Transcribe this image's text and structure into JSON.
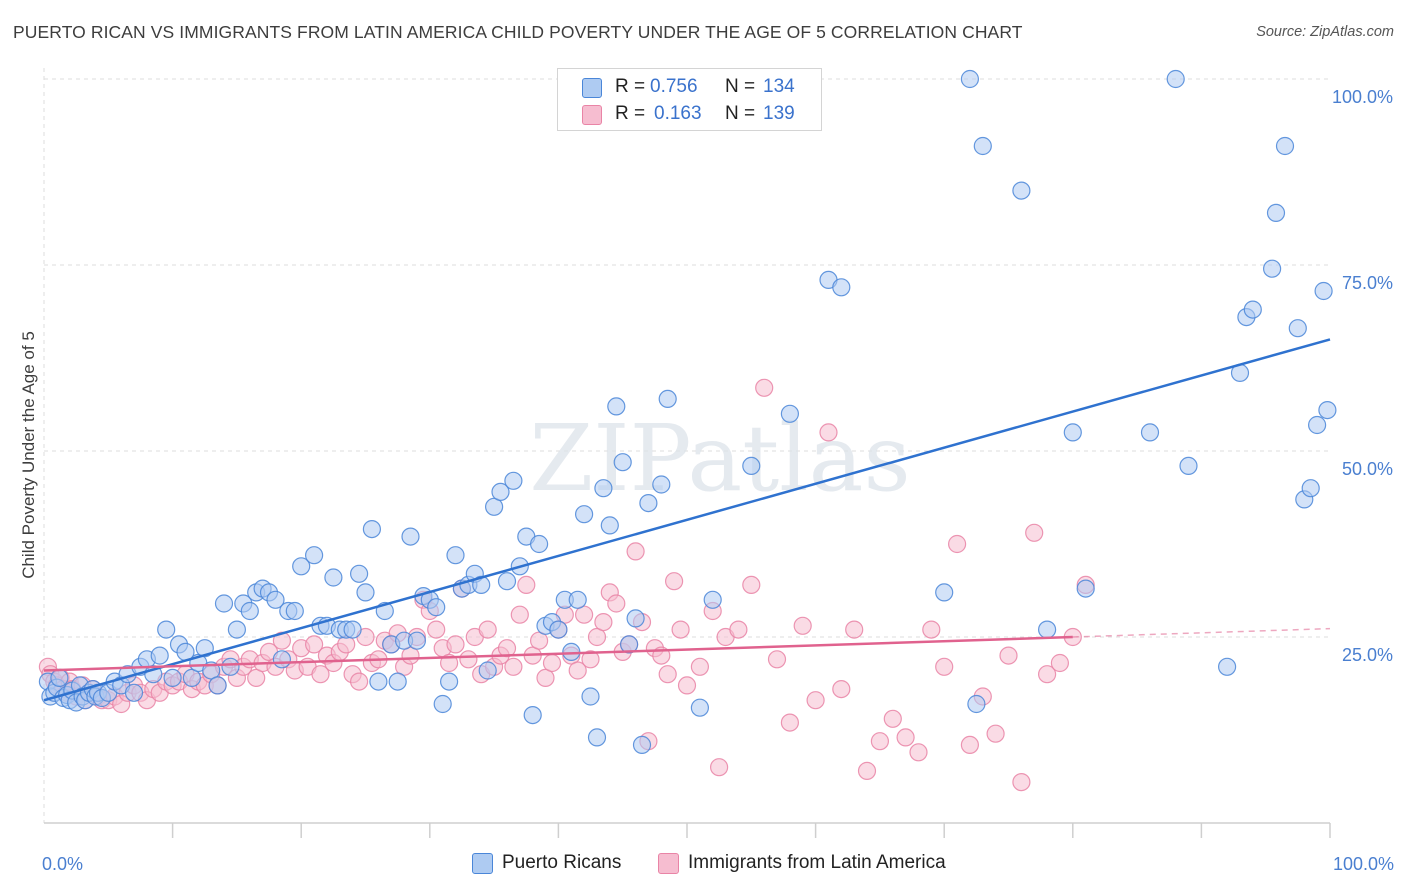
{
  "title": "PUERTO RICAN VS IMMIGRANTS FROM LATIN AMERICA CHILD POVERTY UNDER THE AGE OF 5 CORRELATION CHART",
  "source": "Source: ZipAtlas.com",
  "watermark": "ZIPatlas",
  "colors": {
    "blue": "#4a86d8",
    "blue_fill": "#aecbf2",
    "blue_line": "#2f72cf",
    "pink": "#e984a6",
    "pink_fill": "#f6bdd0",
    "pink_line": "#e0628e",
    "tick": "#4a7fd0",
    "grid": "#dddddd"
  },
  "legend": {
    "rows": [
      {
        "r_label": "R =",
        "r_value": "0.756",
        "n_label": "N =",
        "n_value": "134"
      },
      {
        "r_label": "R =",
        "r_value": "0.163",
        "n_label": "N =",
        "n_value": "139"
      }
    ]
  },
  "bottom_legend": [
    "Puerto Ricans",
    "Immigrants from Latin America"
  ],
  "chart_data": {
    "type": "scatter",
    "ylabel": "Child Poverty Under the Age of 5",
    "xlim": [
      0,
      100
    ],
    "ylim": [
      0,
      100
    ],
    "x_tick_labels": [
      "0.0%",
      "100.0%"
    ],
    "y_tick_labels": [
      "25.0%",
      "50.0%",
      "75.0%",
      "100.0%"
    ],
    "y_ticks": [
      25,
      50,
      75,
      100
    ],
    "grid": true,
    "series": [
      {
        "name": "Puerto Ricans",
        "trend": [
          [
            0,
            16.5
          ],
          [
            100,
            65.0
          ]
        ],
        "points": [
          [
            0.3,
            19.0
          ],
          [
            0.5,
            17.0
          ],
          [
            0.8,
            17.5
          ],
          [
            1.0,
            18.2
          ],
          [
            1.2,
            19.5
          ],
          [
            1.5,
            16.8
          ],
          [
            1.8,
            17.2
          ],
          [
            2.0,
            16.5
          ],
          [
            2.2,
            17.8
          ],
          [
            2.5,
            16.2
          ],
          [
            2.8,
            18.5
          ],
          [
            3.0,
            17.0
          ],
          [
            3.2,
            16.5
          ],
          [
            3.5,
            17.5
          ],
          [
            3.8,
            18.0
          ],
          [
            4.0,
            17.0
          ],
          [
            4.2,
            17.5
          ],
          [
            4.5,
            16.8
          ],
          [
            5.0,
            17.5
          ],
          [
            5.5,
            19.0
          ],
          [
            6.0,
            18.5
          ],
          [
            6.5,
            20.0
          ],
          [
            7.0,
            17.5
          ],
          [
            7.5,
            21.0
          ],
          [
            8.0,
            22.0
          ],
          [
            8.5,
            20.0
          ],
          [
            9.0,
            22.5
          ],
          [
            9.5,
            26.0
          ],
          [
            10.0,
            19.5
          ],
          [
            10.5,
            24.0
          ],
          [
            11.0,
            23.0
          ],
          [
            11.5,
            19.5
          ],
          [
            12.0,
            21.5
          ],
          [
            12.5,
            23.5
          ],
          [
            13.0,
            20.5
          ],
          [
            13.5,
            18.5
          ],
          [
            14.0,
            29.5
          ],
          [
            14.5,
            21.0
          ],
          [
            15.0,
            26.0
          ],
          [
            15.5,
            29.5
          ],
          [
            16.0,
            28.5
          ],
          [
            16.5,
            31.0
          ],
          [
            17.0,
            31.5
          ],
          [
            17.5,
            31.0
          ],
          [
            18.0,
            30.0
          ],
          [
            18.5,
            22.0
          ],
          [
            19.0,
            28.5
          ],
          [
            19.5,
            28.5
          ],
          [
            20.0,
            34.5
          ],
          [
            21.0,
            36.0
          ],
          [
            21.5,
            26.5
          ],
          [
            22.0,
            26.5
          ],
          [
            22.5,
            33.0
          ],
          [
            23.0,
            26.0
          ],
          [
            23.5,
            26.0
          ],
          [
            24.0,
            26.0
          ],
          [
            24.5,
            33.5
          ],
          [
            25.0,
            31.0
          ],
          [
            25.5,
            39.5
          ],
          [
            26.0,
            19.0
          ],
          [
            26.5,
            28.5
          ],
          [
            27.0,
            24.0
          ],
          [
            27.5,
            19.0
          ],
          [
            28.0,
            24.5
          ],
          [
            28.5,
            38.5
          ],
          [
            29.0,
            24.5
          ],
          [
            29.5,
            30.5
          ],
          [
            30.0,
            30.0
          ],
          [
            30.5,
            29.0
          ],
          [
            31.0,
            16.0
          ],
          [
            31.5,
            19.0
          ],
          [
            32.0,
            36.0
          ],
          [
            32.5,
            31.5
          ],
          [
            33.0,
            32.0
          ],
          [
            33.5,
            33.5
          ],
          [
            34.0,
            32.0
          ],
          [
            34.5,
            20.5
          ],
          [
            35.0,
            42.5
          ],
          [
            35.5,
            44.5
          ],
          [
            36.0,
            32.5
          ],
          [
            36.5,
            46.0
          ],
          [
            37.0,
            34.5
          ],
          [
            37.5,
            38.5
          ],
          [
            38.0,
            14.5
          ],
          [
            38.5,
            37.5
          ],
          [
            39.0,
            26.5
          ],
          [
            39.5,
            27.0
          ],
          [
            40.0,
            26.0
          ],
          [
            40.5,
            30.0
          ],
          [
            41.0,
            23.0
          ],
          [
            41.5,
            30.0
          ],
          [
            42.0,
            41.5
          ],
          [
            42.5,
            17.0
          ],
          [
            43.0,
            11.5
          ],
          [
            43.5,
            45.0
          ],
          [
            44.0,
            40.0
          ],
          [
            44.5,
            56.0
          ],
          [
            45.0,
            48.5
          ],
          [
            45.5,
            24.0
          ],
          [
            46.0,
            27.5
          ],
          [
            46.5,
            10.5
          ],
          [
            47.0,
            43.0
          ],
          [
            48.0,
            45.5
          ],
          [
            48.5,
            57.0
          ],
          [
            51.0,
            15.5
          ],
          [
            52.0,
            30.0
          ],
          [
            55.0,
            48.0
          ],
          [
            58.0,
            55.0
          ],
          [
            61.0,
            73.0
          ],
          [
            62.0,
            72.0
          ],
          [
            70.0,
            31.0
          ],
          [
            72.0,
            100.0
          ],
          [
            72.5,
            16.0
          ],
          [
            73.0,
            91.0
          ],
          [
            76.0,
            85.0
          ],
          [
            78.0,
            26.0
          ],
          [
            80.0,
            52.5
          ],
          [
            81.0,
            31.5
          ],
          [
            86.0,
            52.5
          ],
          [
            88.0,
            100.0
          ],
          [
            89.0,
            48.0
          ],
          [
            92.0,
            21.0
          ],
          [
            93.0,
            60.5
          ],
          [
            93.5,
            68.0
          ],
          [
            94.0,
            69.0
          ],
          [
            95.5,
            74.5
          ],
          [
            95.8,
            82.0
          ],
          [
            96.5,
            91.0
          ],
          [
            97.5,
            66.5
          ],
          [
            98.0,
            43.5
          ],
          [
            98.5,
            45.0
          ],
          [
            99.0,
            53.5
          ],
          [
            99.5,
            71.5
          ],
          [
            99.8,
            55.5
          ]
        ]
      },
      {
        "name": "Immigrants from Latin America",
        "trend": [
          [
            0,
            20.5
          ],
          [
            80,
            25.0
          ]
        ],
        "points": [
          [
            0.3,
            21.0
          ],
          [
            0.5,
            20.0
          ],
          [
            0.8,
            19.0
          ],
          [
            1.0,
            18.5
          ],
          [
            1.3,
            19.5
          ],
          [
            1.5,
            18.0
          ],
          [
            1.8,
            17.5
          ],
          [
            2.0,
            19.0
          ],
          [
            2.2,
            18.0
          ],
          [
            2.5,
            17.0
          ],
          [
            3.0,
            18.5
          ],
          [
            3.2,
            16.5
          ],
          [
            3.5,
            17.5
          ],
          [
            3.8,
            18.0
          ],
          [
            4.2,
            17.0
          ],
          [
            4.5,
            16.5
          ],
          [
            5.0,
            16.5
          ],
          [
            5.5,
            17.0
          ],
          [
            6.0,
            16.0
          ],
          [
            6.5,
            17.5
          ],
          [
            7.0,
            18.5
          ],
          [
            7.5,
            17.5
          ],
          [
            8.0,
            16.5
          ],
          [
            8.5,
            18.0
          ],
          [
            9.0,
            17.5
          ],
          [
            9.5,
            19.0
          ],
          [
            10.0,
            18.5
          ],
          [
            10.5,
            19.0
          ],
          [
            11.0,
            20.0
          ],
          [
            11.5,
            18.0
          ],
          [
            12.0,
            19.0
          ],
          [
            12.5,
            18.5
          ],
          [
            13.0,
            20.0
          ],
          [
            13.5,
            18.5
          ],
          [
            14.0,
            21.0
          ],
          [
            14.5,
            22.0
          ],
          [
            15.0,
            19.5
          ],
          [
            15.5,
            21.0
          ],
          [
            16.0,
            22.0
          ],
          [
            16.5,
            19.5
          ],
          [
            17.0,
            21.5
          ],
          [
            17.5,
            23.0
          ],
          [
            18.0,
            21.0
          ],
          [
            18.5,
            24.5
          ],
          [
            19.0,
            22.0
          ],
          [
            19.5,
            20.5
          ],
          [
            20.0,
            23.5
          ],
          [
            20.5,
            21.0
          ],
          [
            21.0,
            24.0
          ],
          [
            21.5,
            20.0
          ],
          [
            22.0,
            22.5
          ],
          [
            22.5,
            21.5
          ],
          [
            23.0,
            23.0
          ],
          [
            23.5,
            24.0
          ],
          [
            24.0,
            20.0
          ],
          [
            24.5,
            19.0
          ],
          [
            25.0,
            25.0
          ],
          [
            25.5,
            21.5
          ],
          [
            26.0,
            22.0
          ],
          [
            26.5,
            24.5
          ],
          [
            27.0,
            24.0
          ],
          [
            27.5,
            25.5
          ],
          [
            28.0,
            21.0
          ],
          [
            28.5,
            22.5
          ],
          [
            29.0,
            25.0
          ],
          [
            29.5,
            30.0
          ],
          [
            30.0,
            28.5
          ],
          [
            30.5,
            26.0
          ],
          [
            31.0,
            23.5
          ],
          [
            31.5,
            21.5
          ],
          [
            32.0,
            24.0
          ],
          [
            32.5,
            31.5
          ],
          [
            33.0,
            22.0
          ],
          [
            33.5,
            25.0
          ],
          [
            34.0,
            20.0
          ],
          [
            34.5,
            26.0
          ],
          [
            35.0,
            21.0
          ],
          [
            35.5,
            22.5
          ],
          [
            36.0,
            23.5
          ],
          [
            36.5,
            21.0
          ],
          [
            37.0,
            28.0
          ],
          [
            37.5,
            32.0
          ],
          [
            38.0,
            22.5
          ],
          [
            38.5,
            24.5
          ],
          [
            39.0,
            19.5
          ],
          [
            39.5,
            21.5
          ],
          [
            40.0,
            26.0
          ],
          [
            40.5,
            28.0
          ],
          [
            41.0,
            22.5
          ],
          [
            41.5,
            20.5
          ],
          [
            42.0,
            28.0
          ],
          [
            42.5,
            22.0
          ],
          [
            43.0,
            25.0
          ],
          [
            43.5,
            27.0
          ],
          [
            44.0,
            31.0
          ],
          [
            44.5,
            29.5
          ],
          [
            45.0,
            23.0
          ],
          [
            45.5,
            24.0
          ],
          [
            46.0,
            36.5
          ],
          [
            46.5,
            27.0
          ],
          [
            47.0,
            11.0
          ],
          [
            47.5,
            23.5
          ],
          [
            48.0,
            22.5
          ],
          [
            48.5,
            20.0
          ],
          [
            49.0,
            32.5
          ],
          [
            49.5,
            26.0
          ],
          [
            50.0,
            18.5
          ],
          [
            51.0,
            21.0
          ],
          [
            52.0,
            28.5
          ],
          [
            52.5,
            7.5
          ],
          [
            53.0,
            25.0
          ],
          [
            54.0,
            26.0
          ],
          [
            55.0,
            32.0
          ],
          [
            56.0,
            58.5
          ],
          [
            57.0,
            22.0
          ],
          [
            58.0,
            13.5
          ],
          [
            59.0,
            26.5
          ],
          [
            60.0,
            16.5
          ],
          [
            61.0,
            52.5
          ],
          [
            62.0,
            18.0
          ],
          [
            63.0,
            26.0
          ],
          [
            64.0,
            7.0
          ],
          [
            65.0,
            11.0
          ],
          [
            66.0,
            14.0
          ],
          [
            67.0,
            11.5
          ],
          [
            68.0,
            9.5
          ],
          [
            69.0,
            26.0
          ],
          [
            70.0,
            21.0
          ],
          [
            71.0,
            37.5
          ],
          [
            72.0,
            10.5
          ],
          [
            73.0,
            17.0
          ],
          [
            74.0,
            12.0
          ],
          [
            75.0,
            22.5
          ],
          [
            76.0,
            5.5
          ],
          [
            77.0,
            39.0
          ],
          [
            78.0,
            20.0
          ],
          [
            79.0,
            21.5
          ],
          [
            80.0,
            25.0
          ],
          [
            81.0,
            32.0
          ]
        ]
      }
    ]
  }
}
